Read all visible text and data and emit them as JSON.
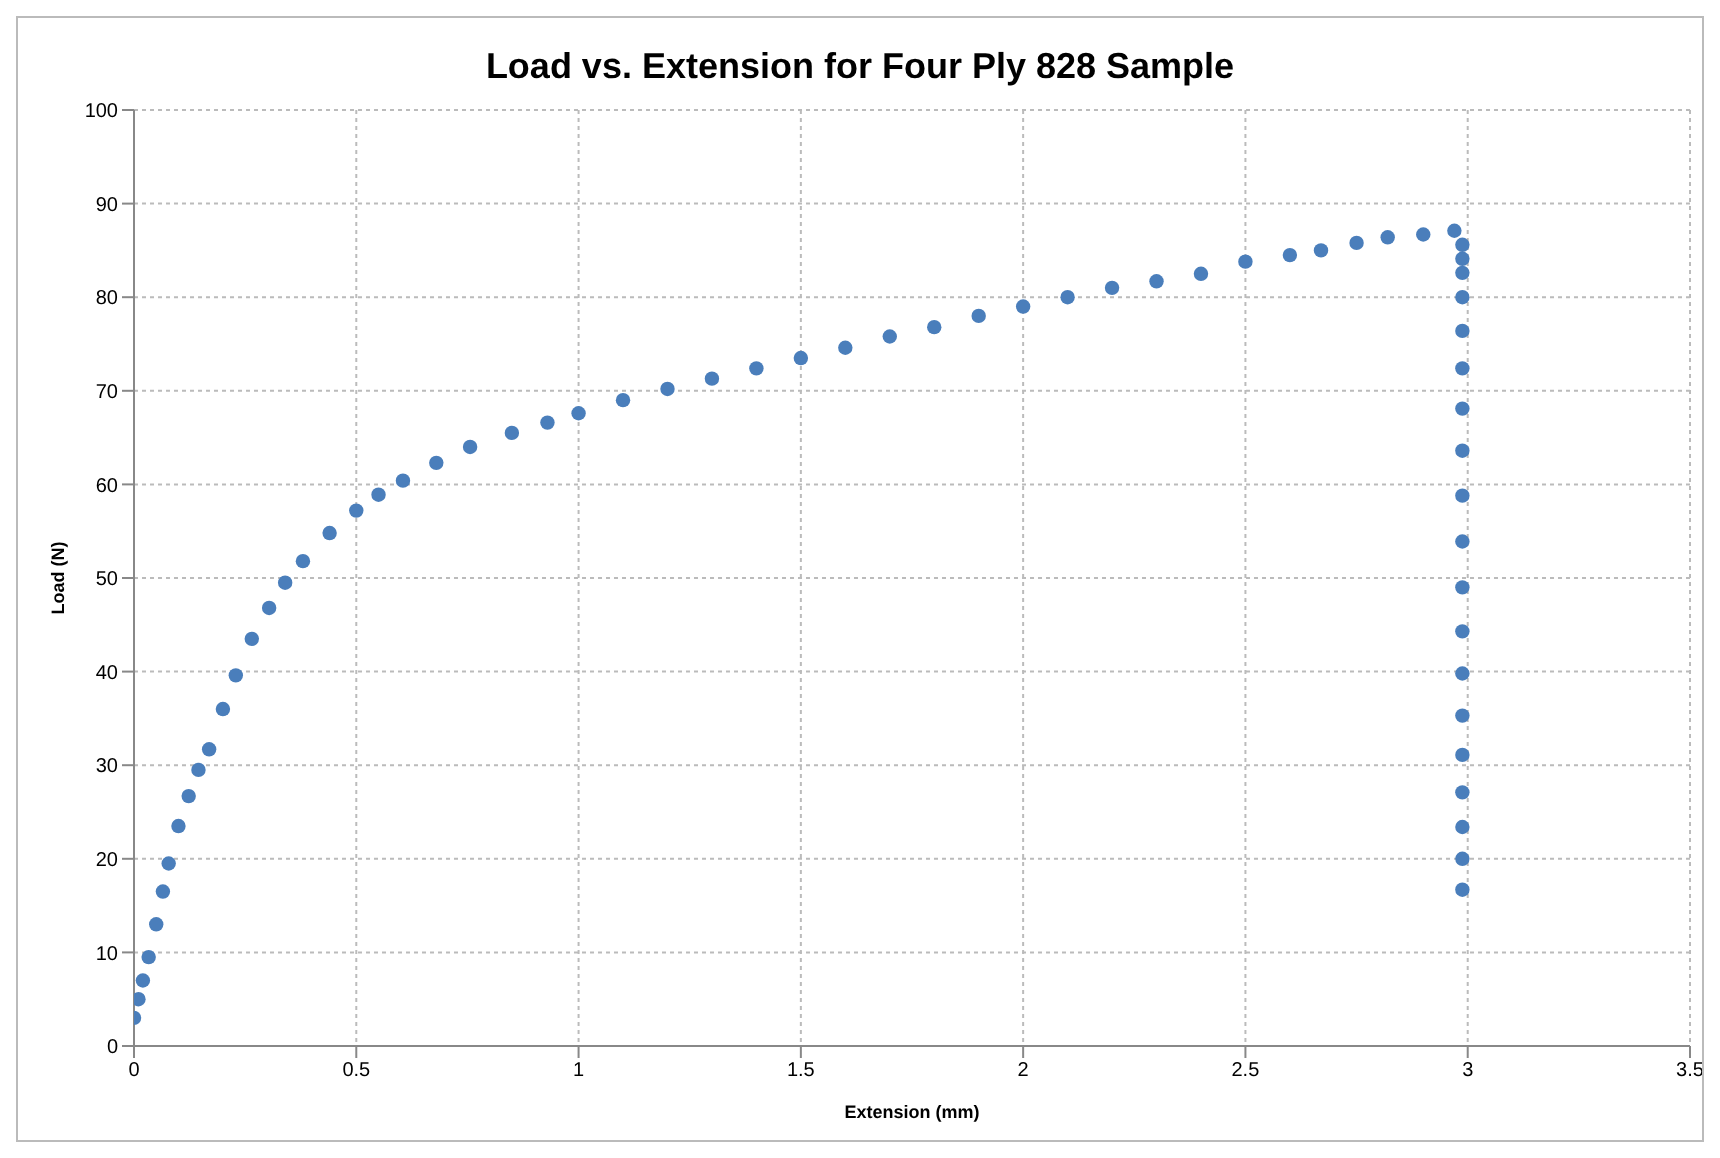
{
  "chart_data": {
    "type": "scatter",
    "title": "Load vs. Extension for Four Ply 828 Sample",
    "xlabel": "Extension (mm)",
    "ylabel": "Load (N)",
    "marker": "circle",
    "grid": true,
    "legend": false,
    "xlim": [
      0,
      3.5
    ],
    "xticks": [
      0,
      0.5,
      1,
      1.5,
      2,
      2.5,
      3,
      3.5
    ],
    "ylim": [
      0,
      100
    ],
    "yticks": [
      0,
      10,
      20,
      30,
      40,
      50,
      60,
      70,
      80,
      90,
      100
    ],
    "series": [
      {
        "color": "#4a7ebb",
        "x": [
          0,
          0.01,
          0.02,
          0.033,
          0.05,
          0.065,
          0.078,
          0.1,
          0.123,
          0.145,
          0.169,
          0.2,
          0.229,
          0.265,
          0.304,
          0.34,
          0.38,
          0.44,
          0.5,
          0.55,
          0.605,
          0.68,
          0.756,
          0.85,
          0.93,
          1.0,
          1.1,
          1.2,
          1.3,
          1.4,
          1.5,
          1.6,
          1.7,
          1.8,
          1.9,
          2.0,
          2.1,
          2.2,
          2.3,
          2.4,
          2.5,
          2.6,
          2.67,
          2.75,
          2.82,
          2.9,
          2.97,
          2.988,
          2.988,
          2.988,
          2.988,
          2.988,
          2.988,
          2.988,
          2.988,
          2.988,
          2.988,
          2.988,
          2.988,
          2.988,
          2.988,
          2.988,
          2.988,
          2.988,
          2.988,
          2.988
        ],
        "values": [
          3,
          5,
          7,
          9.5,
          13,
          16.5,
          19.5,
          23.5,
          26.7,
          29.5,
          31.7,
          36,
          39.6,
          43.5,
          46.8,
          49.5,
          51.8,
          54.8,
          57.2,
          58.9,
          60.4,
          62.3,
          64,
          65.5,
          66.6,
          67.6,
          69,
          70.2,
          71.3,
          72.4,
          73.5,
          74.6,
          75.8,
          76.8,
          78,
          79,
          80,
          81,
          81.7,
          82.5,
          83.8,
          84.5,
          85,
          85.8,
          86.4,
          86.7,
          87.1,
          85.6,
          84.1,
          82.6,
          80.0,
          76.4,
          72.4,
          68.1,
          63.6,
          58.8,
          53.9,
          49.0,
          44.3,
          39.8,
          35.3,
          31.1,
          27.1,
          23.4,
          20.0,
          16.7
        ]
      }
    ]
  }
}
